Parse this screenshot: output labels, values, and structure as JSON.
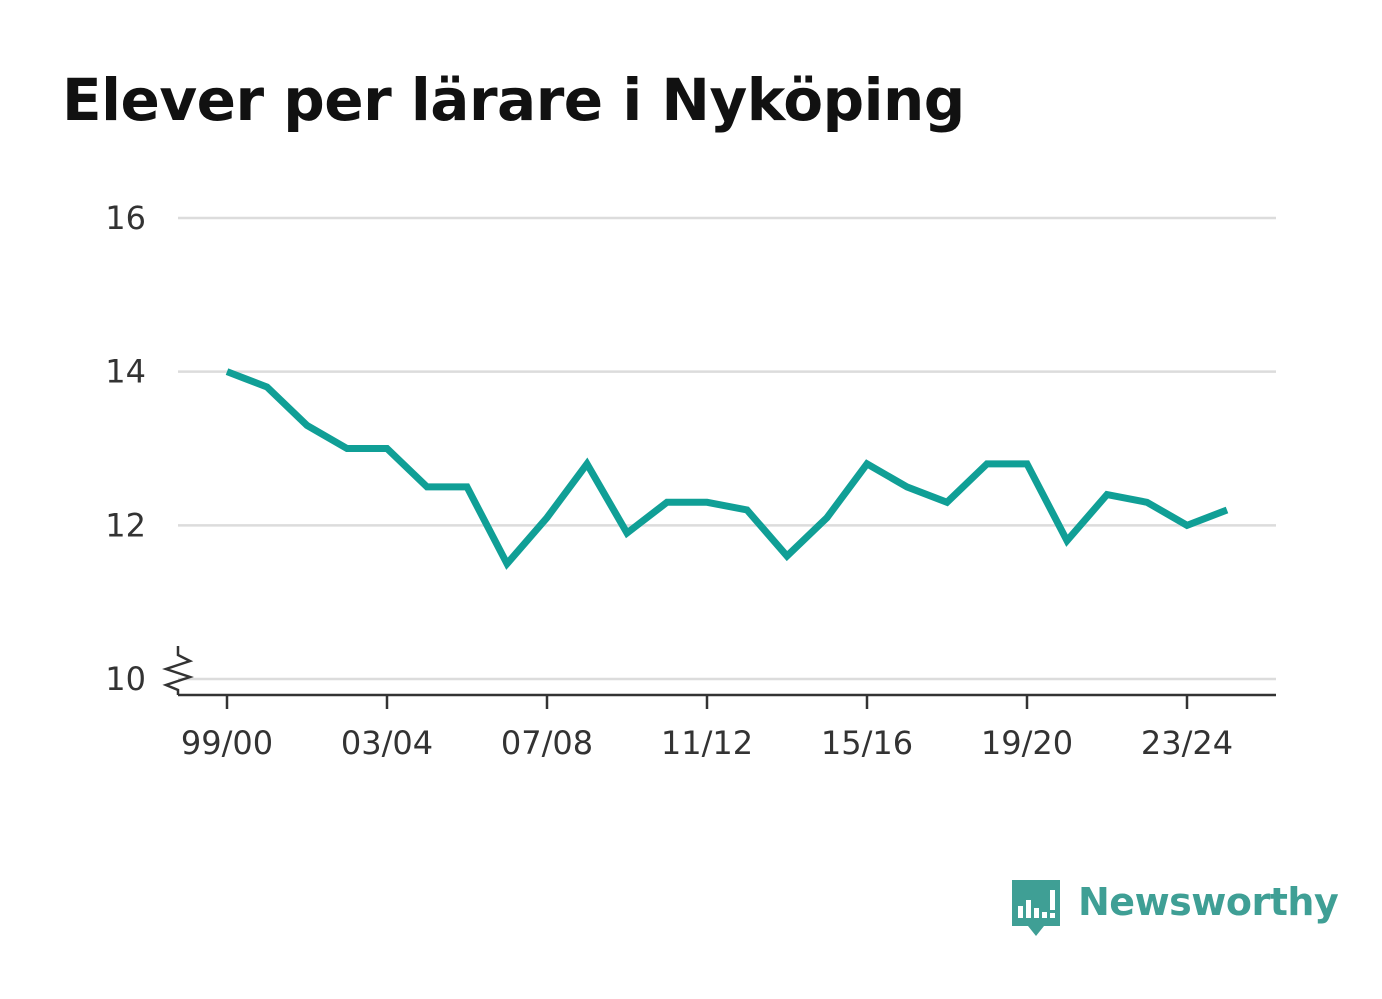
{
  "title": "Elever per lärare i Nyköping",
  "brand": {
    "name": "Newsworthy",
    "icon": "newsworthy-logo-icon",
    "color": "#3f9f95"
  },
  "chart_data": {
    "type": "line",
    "title": "Elever per lärare i Nyköping",
    "xlabel": "",
    "ylabel": "",
    "ylim": [
      10,
      16
    ],
    "y_axis_break": true,
    "grid": true,
    "yticks": [
      "10",
      "12",
      "14",
      "16"
    ],
    "xticks": [
      "99/00",
      "03/04",
      "07/08",
      "11/12",
      "15/16",
      "19/20",
      "23/24"
    ],
    "x": [
      "99/00",
      "00/01",
      "01/02",
      "02/03",
      "03/04",
      "04/05",
      "05/06",
      "06/07",
      "07/08",
      "08/09",
      "09/10",
      "10/11",
      "11/12",
      "12/13",
      "13/14",
      "14/15",
      "15/16",
      "16/17",
      "17/18",
      "18/19",
      "19/20",
      "20/21",
      "21/22",
      "22/23",
      "23/24",
      "24/25"
    ],
    "series": [
      {
        "color": "#109f96",
        "values": [
          14.0,
          13.8,
          13.3,
          13.0,
          13.0,
          12.5,
          12.5,
          11.5,
          12.1,
          12.8,
          11.9,
          12.3,
          12.3,
          12.2,
          11.6,
          12.1,
          12.8,
          12.5,
          12.3,
          12.8,
          12.8,
          11.8,
          12.4,
          12.3,
          12.0,
          12.2
        ]
      }
    ]
  }
}
